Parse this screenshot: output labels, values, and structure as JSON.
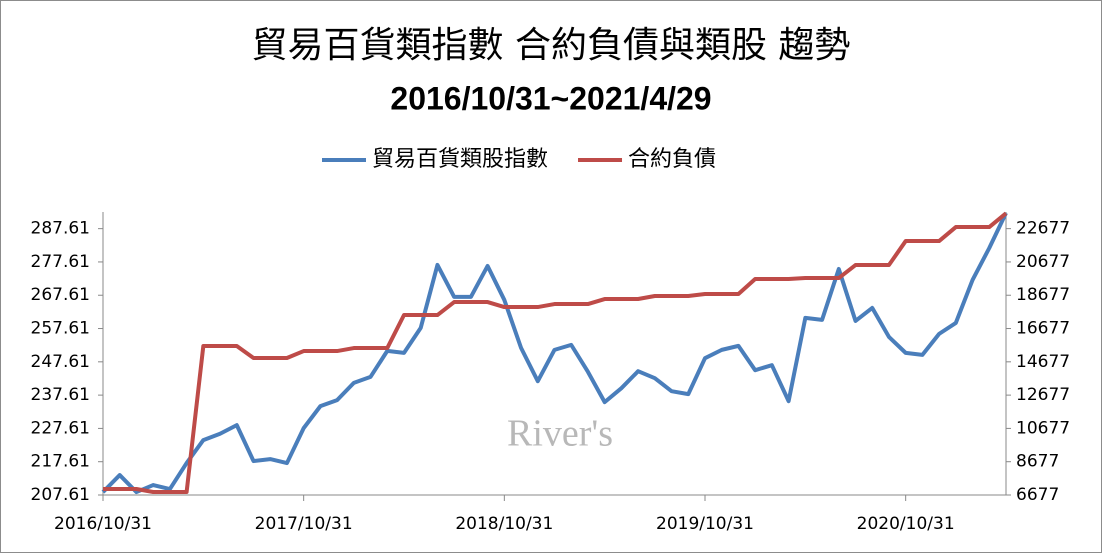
{
  "chart_data": {
    "type": "line",
    "title": "貿易百貨類指數 合約負債與類股 趨勢",
    "subtitle": "2016/10/31~2021/4/29",
    "watermark": "River's",
    "categories": [
      "2016/10/31",
      null,
      null,
      null,
      null,
      null,
      null,
      null,
      null,
      null,
      null,
      null,
      "2017/10/31",
      null,
      null,
      null,
      null,
      null,
      null,
      null,
      null,
      null,
      null,
      null,
      "2018/10/31",
      null,
      null,
      null,
      null,
      null,
      null,
      null,
      null,
      null,
      null,
      null,
      "2019/10/31",
      null,
      null,
      null,
      null,
      null,
      null,
      null,
      null,
      null,
      null,
      null,
      "2020/10/31",
      null,
      null,
      null,
      null,
      null,
      null
    ],
    "series": [
      {
        "name": "貿易百貨類股指數",
        "color": "#4a7ebb",
        "values": [
          208.5,
          213.6,
          208.5,
          210.6,
          209.4,
          217.2,
          224.1,
          226,
          228.6,
          217.8,
          218.4,
          217.2,
          227.7,
          234.3,
          236.1,
          241.3,
          243.1,
          250.9,
          250.3,
          257.8,
          276.7,
          267.1,
          267.1,
          276.4,
          266.2,
          251.8,
          241.8,
          251.2,
          252.7,
          244.6,
          235.5,
          239.7,
          244.8,
          242.7,
          238.8,
          237.9,
          248.7,
          251.2,
          252.4,
          245.1,
          246.6,
          235.8,
          260.8,
          260.2,
          275.5,
          259.9,
          263.8,
          255.1,
          250.3,
          249.7,
          256,
          259.3,
          272.2,
          281.8,
          292.3
        ]
      },
      {
        "name": "合約負債",
        "color": "#be4b48",
        "axis": "y2",
        "values": [
          7037,
          7037,
          7037,
          6857,
          6857,
          6857,
          15626,
          15626,
          15626,
          14905,
          14905,
          14905,
          15325,
          15325,
          15325,
          15505,
          15505,
          15505,
          17488,
          17488,
          17488,
          18268,
          18268,
          18268,
          17968,
          17968,
          17968,
          18148,
          18148,
          18148,
          18449,
          18449,
          18449,
          18629,
          18629,
          18629,
          18749,
          18749,
          18749,
          19650,
          19650,
          19650,
          19710,
          19710,
          19710,
          20491,
          20491,
          20491,
          21932,
          21932,
          21932,
          22773,
          22773,
          22773,
          23600
        ]
      }
    ],
    "ylim": [
      207.61,
      292.61
    ],
    "yticks": [
      207.61,
      217.61,
      227.61,
      237.61,
      247.61,
      257.61,
      267.61,
      277.61,
      287.61
    ],
    "y2lim": [
      6677,
      23677
    ],
    "y2ticks": [
      6677,
      8677,
      10677,
      12677,
      14677,
      16677,
      18677,
      20677,
      22677
    ],
    "legend": "top",
    "grid": false
  }
}
